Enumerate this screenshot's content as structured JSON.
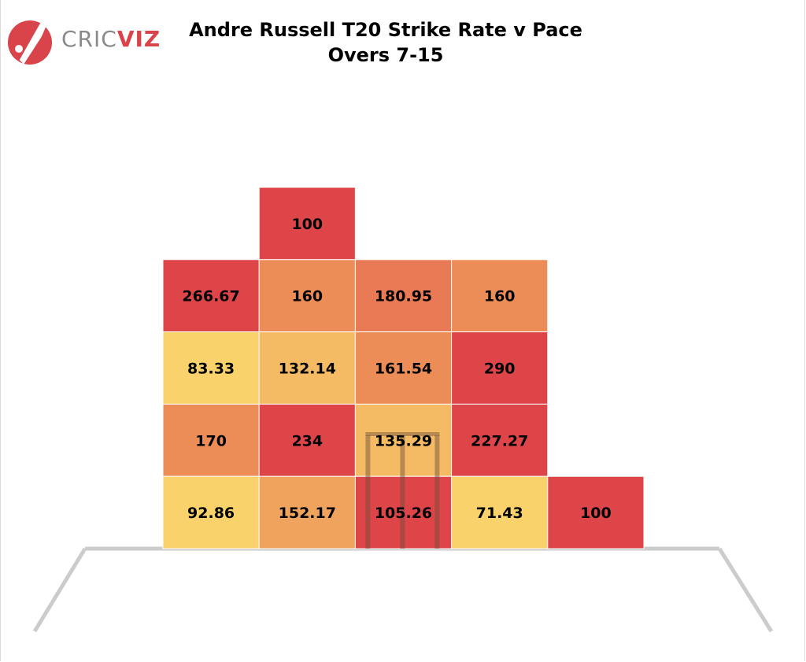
{
  "title": {
    "line1": "Andre Russell T20 Strike Rate v Pace",
    "line2": "Overs 7-15"
  },
  "logo": {
    "part1": "CRIC",
    "part2": "VIZ",
    "icon": "cricket-bat-ball-icon"
  },
  "colors": {
    "red": "#dd4549",
    "dark_orange": "#e87a55",
    "orange": "#ec8d58",
    "light_orange": "#f0a35c",
    "amber": "#f5bb64",
    "yellow": "#f9d26b",
    "pitch_line": "#cccccc",
    "stumps": "#6b4e3a"
  },
  "chart_data": {
    "type": "heatmap",
    "title": "Andre Russell T20 Strike Rate v Pace",
    "subtitle": "Overs 7-15",
    "metric": "Strike Rate",
    "cells": [
      {
        "row": 0,
        "col": 1,
        "value": "100",
        "color": "red"
      },
      {
        "row": 1,
        "col": 0,
        "value": "266.67",
        "color": "red"
      },
      {
        "row": 1,
        "col": 1,
        "value": "160",
        "color": "orange"
      },
      {
        "row": 1,
        "col": 2,
        "value": "180.95",
        "color": "dark_orange"
      },
      {
        "row": 1,
        "col": 3,
        "value": "160",
        "color": "orange"
      },
      {
        "row": 2,
        "col": 0,
        "value": "83.33",
        "color": "yellow"
      },
      {
        "row": 2,
        "col": 1,
        "value": "132.14",
        "color": "amber"
      },
      {
        "row": 2,
        "col": 2,
        "value": "161.54",
        "color": "orange"
      },
      {
        "row": 2,
        "col": 3,
        "value": "290",
        "color": "red"
      },
      {
        "row": 3,
        "col": 0,
        "value": "170",
        "color": "orange"
      },
      {
        "row": 3,
        "col": 1,
        "value": "234",
        "color": "red"
      },
      {
        "row": 3,
        "col": 2,
        "value": "135.29",
        "color": "amber"
      },
      {
        "row": 3,
        "col": 3,
        "value": "227.27",
        "color": "red"
      },
      {
        "row": 4,
        "col": 0,
        "value": "92.86",
        "color": "yellow"
      },
      {
        "row": 4,
        "col": 1,
        "value": "152.17",
        "color": "light_orange"
      },
      {
        "row": 4,
        "col": 2,
        "value": "105.26",
        "color": "red"
      },
      {
        "row": 4,
        "col": 3,
        "value": "71.43",
        "color": "yellow"
      },
      {
        "row": 4,
        "col": 4,
        "value": "100",
        "color": "red"
      }
    ]
  }
}
